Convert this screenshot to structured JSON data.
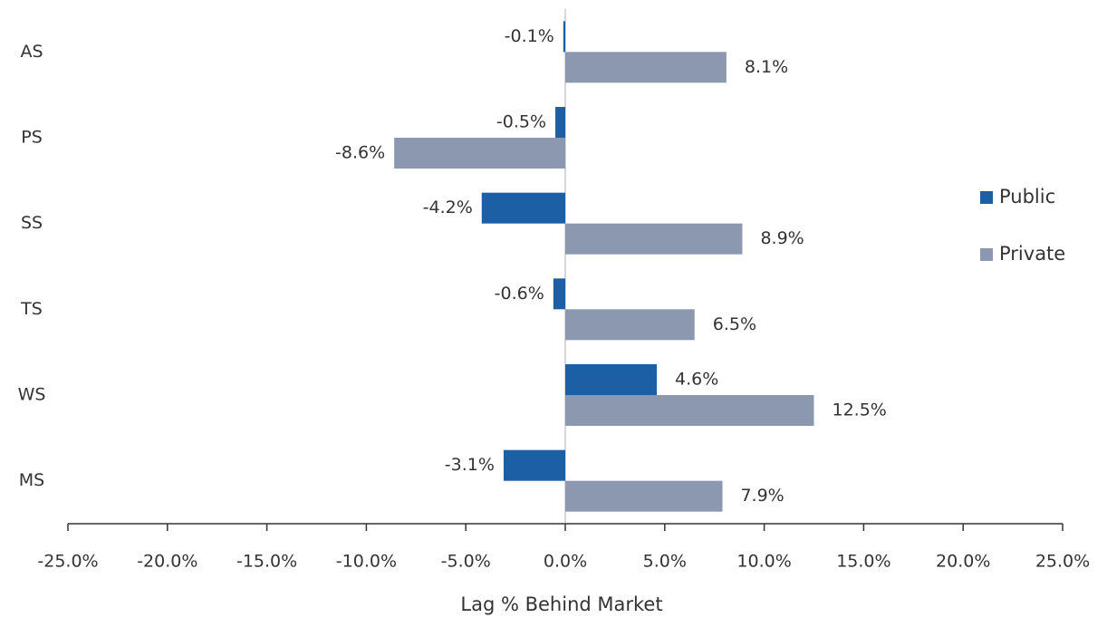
{
  "chart_data": {
    "type": "hbar",
    "x_label": "Lag % Behind Market",
    "categories": [
      "AS",
      "PS",
      "SS",
      "TS",
      "WS",
      "MS"
    ],
    "series": [
      {
        "name": "Public",
        "color": "#1c5fa5",
        "values": [
          -0.1,
          -0.5,
          -4.2,
          -0.6,
          4.6,
          -3.1
        ],
        "value_labels": [
          "-0.1%",
          "-0.5%",
          "-4.2%",
          "-0.6%",
          "4.6%",
          "-3.1%"
        ]
      },
      {
        "name": "Private",
        "color": "#8c98b0",
        "values": [
          8.1,
          -8.6,
          8.9,
          6.5,
          12.5,
          7.9
        ],
        "value_labels": [
          "8.1%",
          "-8.6%",
          "8.9%",
          "6.5%",
          "12.5%",
          "7.9%"
        ]
      }
    ],
    "xlim": [
      -25,
      25
    ],
    "xticks": [
      {
        "value": -25,
        "label": "-25.0%"
      },
      {
        "value": -20,
        "label": "-20.0%"
      },
      {
        "value": -15,
        "label": "-15.0%"
      },
      {
        "value": -10,
        "label": "-10.0%"
      },
      {
        "value": -5,
        "label": "-5.0%"
      },
      {
        "value": 0,
        "label": "0.0%"
      },
      {
        "value": 5,
        "label": "5.0%"
      },
      {
        "value": 10,
        "label": "10.0%"
      },
      {
        "value": 15,
        "label": "15.0%"
      },
      {
        "value": 20,
        "label": "20.0%"
      },
      {
        "value": 25,
        "label": "25.0%"
      }
    ],
    "legend": "right"
  }
}
